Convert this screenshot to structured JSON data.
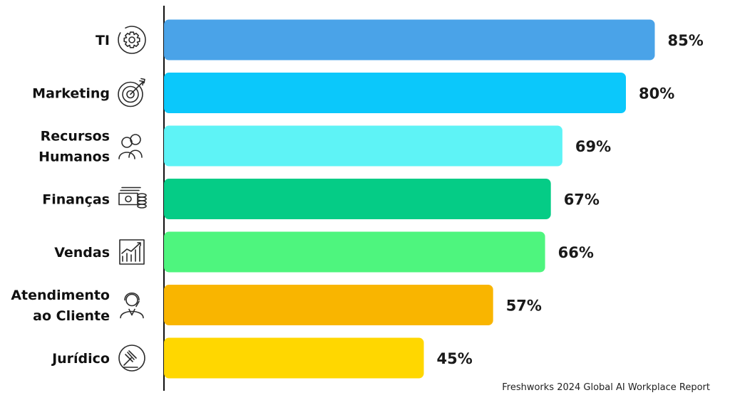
{
  "chart_data": {
    "type": "bar",
    "orientation": "horizontal",
    "categories": [
      {
        "lines": [
          "TI"
        ],
        "icon": "gear-icon"
      },
      {
        "lines": [
          "Marketing"
        ],
        "icon": "target-icon"
      },
      {
        "lines": [
          "Recursos",
          "Humanos"
        ],
        "icon": "people-icon"
      },
      {
        "lines": [
          "Finanças"
        ],
        "icon": "money-icon"
      },
      {
        "lines": [
          "Vendas"
        ],
        "icon": "growth-chart-icon"
      },
      {
        "lines": [
          "Atendimento",
          "ao Cliente"
        ],
        "icon": "support-agent-icon"
      },
      {
        "lines": [
          "Jurídico"
        ],
        "icon": "gavel-icon"
      }
    ],
    "values": [
      85,
      80,
      69,
      67,
      66,
      57,
      45
    ],
    "value_labels": [
      "85%",
      "80%",
      "69%",
      "67%",
      "66%",
      "57%",
      "45%"
    ],
    "colors": [
      "#4aa3e8",
      "#0bc8fb",
      "#5ef3f6",
      "#05cc86",
      "#4ef57e",
      "#f9b500",
      "#ffd700"
    ],
    "xlim": [
      0,
      100
    ],
    "grid": false,
    "legend": "none",
    "source": "Freshworks 2024 Global AI Workplace Report"
  }
}
